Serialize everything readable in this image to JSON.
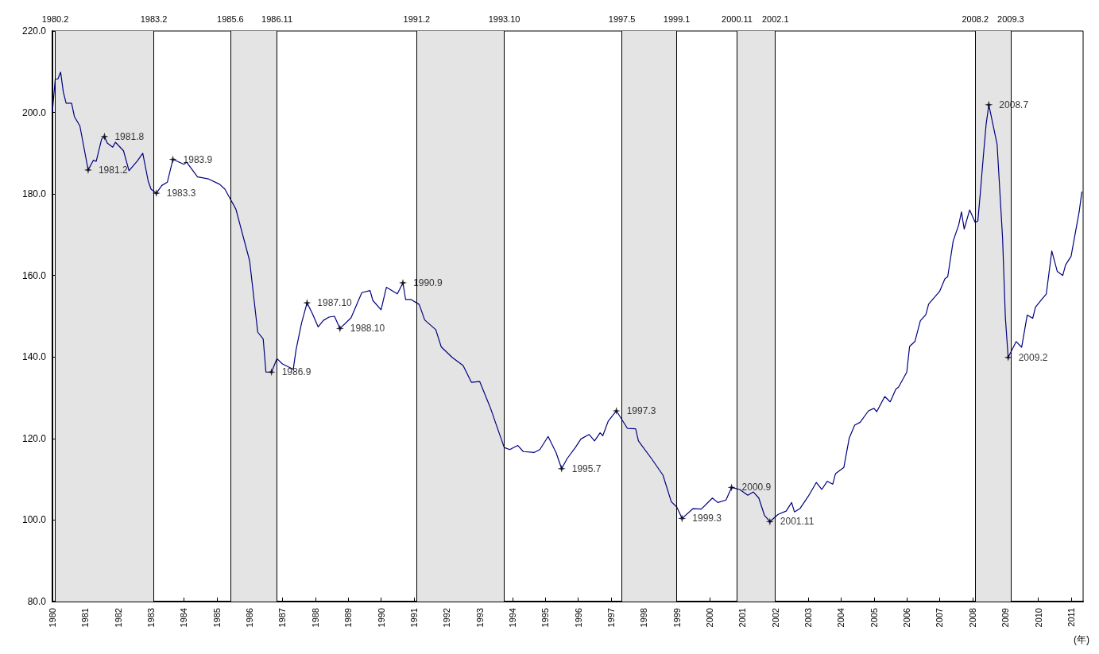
{
  "chart_data": {
    "type": "line",
    "xlabel": "(年)",
    "xlim": [
      "1980-01-01",
      "2011-05-15"
    ],
    "xticks": [
      "1980",
      "1981",
      "1982",
      "1983",
      "1984",
      "1985",
      "1986",
      "1987",
      "1988",
      "1989",
      "1990",
      "1991",
      "1992",
      "1993",
      "1994",
      "1995",
      "1996",
      "1997",
      "1998",
      "1999",
      "2000",
      "2001",
      "2002",
      "2003",
      "2004",
      "2005",
      "2006",
      "2007",
      "2008",
      "2009",
      "2010",
      "2011"
    ],
    "ylim": [
      80,
      220
    ],
    "yticks": [
      {
        "value": 80,
        "label": "80.0"
      },
      {
        "value": 100,
        "label": "100.0"
      },
      {
        "value": 120,
        "label": "120.0"
      },
      {
        "value": 140,
        "label": "140.0"
      },
      {
        "value": 160,
        "label": "160.0"
      },
      {
        "value": 180,
        "label": "180.0"
      },
      {
        "value": 200,
        "label": "200.0"
      },
      {
        "value": 220,
        "label": "220.0"
      }
    ],
    "grid": false,
    "marker": "none",
    "line_style": "solid",
    "series": [
      {
        "color": "#000080",
        "x": [
          "1980-01",
          "1980-02",
          "1980-03",
          "1980-04",
          "1980-05",
          "1980-06",
          "1980-08",
          "1980-09",
          "1980-11",
          "1981-02",
          "1981-04",
          "1981-05",
          "1981-07",
          "1981-08",
          "1981-09",
          "1981-11",
          "1981-12",
          "1982-03",
          "1982-05",
          "1982-08",
          "1982-10",
          "1982-12",
          "1983-01",
          "1983-03",
          "1983-05",
          "1983-07",
          "1983-09",
          "1984-01",
          "1984-02",
          "1984-06",
          "1984-10",
          "1985-02",
          "1985-04",
          "1985-08",
          "1986-01",
          "1986-04",
          "1986-06",
          "1986-07",
          "1986-09",
          "1986-11",
          "1987-01",
          "1987-05",
          "1987-06",
          "1987-08",
          "1987-10",
          "1987-12",
          "1988-02",
          "1988-04",
          "1988-06",
          "1988-08",
          "1988-10",
          "1989-02",
          "1989-06",
          "1989-09",
          "1989-10",
          "1990-01",
          "1990-03",
          "1990-07",
          "1990-09",
          "1990-10",
          "1990-12",
          "1991-03",
          "1991-05",
          "1991-09",
          "1991-11",
          "1992-03",
          "1992-07",
          "1992-10",
          "1993-01",
          "1993-05",
          "1993-07",
          "1993-10",
          "1993-12",
          "1994-03",
          "1994-05",
          "1994-09",
          "1994-11",
          "1995-02",
          "1995-05",
          "1995-07",
          "1995-09",
          "1995-12",
          "1996-02",
          "1996-05",
          "1996-07",
          "1996-09",
          "1996-10",
          "1996-12",
          "1997-03",
          "1997-07",
          "1997-10",
          "1997-11",
          "1998-04",
          "1998-08",
          "1998-11",
          "1999-01",
          "1999-03",
          "1999-07",
          "1999-10",
          "2000-02",
          "2000-04",
          "2000-07",
          "2000-09",
          "2000-12",
          "2001-03",
          "2001-05",
          "2001-07",
          "2001-09",
          "2001-11",
          "2002-02",
          "2002-05",
          "2002-07",
          "2002-08",
          "2002-10",
          "2003-01",
          "2003-04",
          "2003-06",
          "2003-08",
          "2003-10",
          "2003-11",
          "2004-02",
          "2004-04",
          "2004-06",
          "2004-08",
          "2004-11",
          "2005-01",
          "2005-02",
          "2005-05",
          "2005-07",
          "2005-09",
          "2005-10",
          "2006-01",
          "2006-02",
          "2006-04",
          "2006-06",
          "2006-08",
          "2006-09",
          "2007-01",
          "2007-03",
          "2007-04",
          "2007-06",
          "2007-08",
          "2007-09",
          "2007-10",
          "2007-12",
          "2008-02",
          "2008-03",
          "2008-04",
          "2008-05",
          "2008-06",
          "2008-07",
          "2008-10",
          "2008-12",
          "2009-01",
          "2009-02",
          "2009-05",
          "2009-07",
          "2009-09",
          "2009-11",
          "2009-12",
          "2010-02",
          "2010-04",
          "2010-06",
          "2010-08",
          "2010-10",
          "2010-11",
          "2011-01",
          "2011-04",
          "2011-05"
        ],
        "values": [
          200.3,
          208.2,
          208.2,
          209.9,
          205.0,
          202.3,
          202.3,
          199.0,
          196.7,
          185.9,
          188.3,
          188.0,
          193.5,
          194.1,
          192.5,
          191.5,
          192.7,
          190.6,
          185.7,
          188.1,
          190.0,
          183.1,
          181.2,
          180.2,
          182.1,
          182.9,
          188.5,
          187.3,
          187.8,
          184.2,
          183.7,
          182.4,
          181.2,
          176.3,
          163.6,
          146.1,
          144.4,
          136.3,
          136.3,
          139.6,
          138.3,
          137.0,
          141.8,
          148.3,
          153.3,
          150.6,
          147.4,
          149.0,
          149.8,
          150.0,
          147.0,
          149.6,
          155.8,
          156.3,
          153.9,
          151.6,
          157.1,
          155.5,
          158.2,
          154.1,
          154.1,
          152.9,
          149.1,
          146.7,
          142.5,
          139.9,
          137.9,
          133.8,
          134.0,
          127.5,
          123.6,
          117.8,
          117.3,
          118.3,
          116.8,
          116.6,
          117.3,
          120.5,
          116.5,
          112.6,
          115.1,
          117.8,
          119.9,
          121.0,
          119.4,
          121.4,
          120.7,
          124.3,
          126.8,
          122.5,
          122.4,
          119.4,
          114.9,
          111.0,
          104.5,
          103.2,
          100.4,
          102.8,
          102.7,
          105.4,
          104.3,
          104.9,
          108.0,
          107.5,
          106.1,
          106.9,
          105.4,
          101.2,
          99.6,
          101.4,
          102.2,
          104.3,
          102.0,
          102.8,
          105.8,
          109.2,
          107.5,
          109.5,
          108.8,
          111.4,
          112.9,
          120.1,
          123.3,
          124.0,
          126.8,
          127.4,
          126.6,
          130.3,
          129.0,
          132.1,
          132.6,
          136.3,
          142.6,
          143.8,
          148.9,
          150.4,
          153.0,
          156.1,
          159.2,
          159.7,
          168.5,
          172.4,
          175.6,
          171.4,
          176.1,
          173.0,
          173.4,
          181.2,
          189.3,
          197.1,
          201.9,
          192.2,
          169.1,
          149.6,
          139.9,
          143.8,
          142.4,
          150.3,
          149.5,
          152.2,
          153.9,
          155.5,
          166.0,
          161.0,
          160.0,
          162.6,
          164.7,
          175.6,
          180.5
        ]
      }
    ],
    "bands": [
      {
        "axis": "x",
        "from": "1980-02",
        "to": "1983-02",
        "color": "#e4e4e4"
      },
      {
        "axis": "x",
        "from": "1985-06",
        "to": "1986-11",
        "color": "#e4e4e4"
      },
      {
        "axis": "x",
        "from": "1991-02",
        "to": "1993-10",
        "color": "#e4e4e4"
      },
      {
        "axis": "x",
        "from": "1997-05",
        "to": "1999-01",
        "color": "#e4e4e4"
      },
      {
        "axis": "x",
        "from": "2000-11",
        "to": "2002-01",
        "color": "#e4e4e4"
      },
      {
        "axis": "x",
        "from": "2008-02",
        "to": "2009-03",
        "color": "#e4e4e4"
      }
    ],
    "ref_lines": [
      {
        "axis": "x",
        "value": "1980-02",
        "label": "1980.2"
      },
      {
        "axis": "x",
        "value": "1983-02",
        "label": "1983.2"
      },
      {
        "axis": "x",
        "value": "1985-06",
        "label": "1985.6"
      },
      {
        "axis": "x",
        "value": "1986-11",
        "label": "1986.11"
      },
      {
        "axis": "x",
        "value": "1991-02",
        "label": "1991.2"
      },
      {
        "axis": "x",
        "value": "1993-10",
        "label": "1993.10"
      },
      {
        "axis": "x",
        "value": "1997-05",
        "label": "1997.5"
      },
      {
        "axis": "x",
        "value": "1999-01",
        "label": "1999.1"
      },
      {
        "axis": "x",
        "value": "2000-11",
        "label": "2000.11"
      },
      {
        "axis": "x",
        "value": "2002-01",
        "label": "2002.1"
      },
      {
        "axis": "x",
        "value": "2008-02",
        "label": "2008.2"
      },
      {
        "axis": "x",
        "value": "2009-03",
        "label": "2009.3"
      }
    ],
    "annotations": [
      {
        "text": "1981.2",
        "x": "1981-02",
        "y": 185.9
      },
      {
        "text": "1981.8",
        "x": "1981-08",
        "y": 194.1
      },
      {
        "text": "1983.3",
        "x": "1983-03",
        "y": 180.2
      },
      {
        "text": "1983.9",
        "x": "1983-09",
        "y": 188.5
      },
      {
        "text": "1986.9",
        "x": "1986-09",
        "y": 136.3
      },
      {
        "text": "1987.10",
        "x": "1987-10",
        "y": 153.3
      },
      {
        "text": "1988.10",
        "x": "1988-10",
        "y": 147.0
      },
      {
        "text": "1990.9",
        "x": "1990-09",
        "y": 158.2
      },
      {
        "text": "1995.7",
        "x": "1995-07",
        "y": 112.6
      },
      {
        "text": "1997.3",
        "x": "1997-03",
        "y": 126.8
      },
      {
        "text": "1999.3",
        "x": "1999-03",
        "y": 100.4
      },
      {
        "text": "2000.9",
        "x": "2000-09",
        "y": 108.0
      },
      {
        "text": "2001.11",
        "x": "2001-11",
        "y": 99.6
      },
      {
        "text": "2008.7",
        "x": "2008-07",
        "y": 201.9
      },
      {
        "text": "2009.2",
        "x": "2009-02",
        "y": 139.9
      }
    ]
  }
}
